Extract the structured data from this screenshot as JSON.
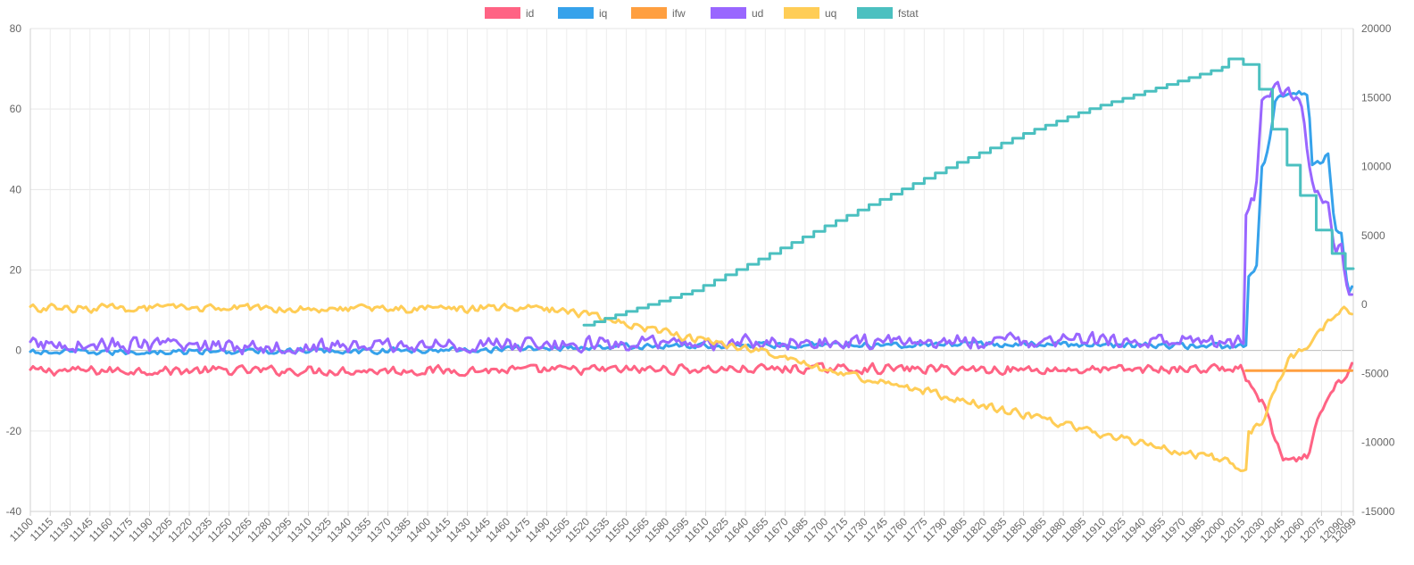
{
  "chart_data": {
    "type": "line",
    "legend_position": "top-center",
    "grid": true,
    "x": {
      "min": 11100,
      "max": 12099,
      "tick_step": 15,
      "last_tick": 12099,
      "rotated_labels": true
    },
    "y_left": {
      "min": -40,
      "max": 80,
      "ticks": [
        -40,
        -20,
        0,
        20,
        40,
        60,
        80
      ]
    },
    "y_right": {
      "min": -15000,
      "max": 20000,
      "ticks": [
        -15000,
        -10000,
        -5000,
        0,
        5000,
        10000,
        15000,
        20000
      ]
    },
    "series": [
      {
        "name": "id",
        "color": "#ff6384",
        "axis": "left",
        "noise": 1.4,
        "points": [
          [
            11100,
            -5
          ],
          [
            11400,
            -5
          ],
          [
            11700,
            -4.5
          ],
          [
            11900,
            -4.8
          ],
          [
            12015,
            -4.5
          ],
          [
            12020,
            -8
          ],
          [
            12032,
            -14
          ],
          [
            12040,
            -22
          ],
          [
            12045,
            -27
          ],
          [
            12055,
            -28
          ],
          [
            12065,
            -26
          ],
          [
            12072,
            -18
          ],
          [
            12080,
            -12
          ],
          [
            12088,
            -8
          ],
          [
            12095,
            -6
          ],
          [
            12099,
            -2
          ]
        ]
      },
      {
        "name": "iq",
        "color": "#36a2eb",
        "axis": "left",
        "noise": 0.9,
        "points": [
          [
            11100,
            -0.5
          ],
          [
            11400,
            0
          ],
          [
            11550,
            1
          ],
          [
            11700,
            1.5
          ],
          [
            11900,
            1.5
          ],
          [
            12018,
            1
          ],
          [
            12020,
            18
          ],
          [
            12026,
            21
          ],
          [
            12030,
            45
          ],
          [
            12035,
            50
          ],
          [
            12040,
            62
          ],
          [
            12050,
            64
          ],
          [
            12060,
            64
          ],
          [
            12065,
            64
          ],
          [
            12068,
            46
          ],
          [
            12075,
            47
          ],
          [
            12080,
            49
          ],
          [
            12085,
            30
          ],
          [
            12090,
            30
          ],
          [
            12095,
            14
          ],
          [
            12099,
            16
          ]
        ]
      },
      {
        "name": "ifw",
        "color": "#ff9f40",
        "axis": "left",
        "noise": 0,
        "points": [
          [
            12018,
            -5
          ],
          [
            12099,
            -5
          ]
        ]
      },
      {
        "name": "ud",
        "color": "#9966ff",
        "axis": "left",
        "noise": 2.2,
        "points": [
          [
            11100,
            1.5
          ],
          [
            11300,
            1
          ],
          [
            11500,
            1.5
          ],
          [
            11700,
            2
          ],
          [
            11900,
            2.5
          ],
          [
            12017,
            2
          ],
          [
            12018,
            35
          ],
          [
            12025,
            38
          ],
          [
            12030,
            62
          ],
          [
            12040,
            66
          ],
          [
            12050,
            64
          ],
          [
            12060,
            60
          ],
          [
            12068,
            42
          ],
          [
            12075,
            37
          ],
          [
            12080,
            35
          ],
          [
            12085,
            26
          ],
          [
            12090,
            25
          ],
          [
            12095,
            16
          ],
          [
            12099,
            13
          ]
        ]
      },
      {
        "name": "uq",
        "color": "#ffcd56",
        "axis": "left",
        "noise": 1.2,
        "points": [
          [
            11100,
            10.5
          ],
          [
            11480,
            10.5
          ],
          [
            11500,
            10
          ],
          [
            11520,
            9
          ],
          [
            11560,
            6
          ],
          [
            11600,
            3
          ],
          [
            11650,
            0
          ],
          [
            11700,
            -5
          ],
          [
            11750,
            -8
          ],
          [
            11800,
            -12
          ],
          [
            11850,
            -16
          ],
          [
            11900,
            -20
          ],
          [
            11950,
            -24
          ],
          [
            12000,
            -27
          ],
          [
            12018,
            -30
          ],
          [
            12020,
            -20
          ],
          [
            12030,
            -18
          ],
          [
            12040,
            -10
          ],
          [
            12050,
            -2
          ],
          [
            12060,
            0
          ],
          [
            12070,
            3
          ],
          [
            12080,
            7
          ],
          [
            12090,
            10
          ],
          [
            12099,
            10
          ]
        ]
      },
      {
        "name": "fstat",
        "color": "#4bc0c0",
        "axis": "right",
        "noise": 0,
        "step": true,
        "points": [
          [
            11100,
            null
          ],
          [
            11518,
            null
          ],
          [
            11518,
            -1500
          ],
          [
            11550,
            -500
          ],
          [
            11600,
            1000
          ],
          [
            11650,
            3300
          ],
          [
            11700,
            5700
          ],
          [
            11750,
            8000
          ],
          [
            11800,
            10300
          ],
          [
            11850,
            12400
          ],
          [
            11900,
            14200
          ],
          [
            11950,
            15700
          ],
          [
            12000,
            17200
          ],
          [
            12005,
            17800
          ],
          [
            12015,
            17800
          ],
          [
            12016,
            17400
          ],
          [
            12027,
            17400
          ],
          [
            12028,
            15600
          ],
          [
            12037,
            15600
          ],
          [
            12038,
            12700
          ],
          [
            12048,
            12700
          ],
          [
            12049,
            10100
          ],
          [
            12058,
            10100
          ],
          [
            12059,
            7900
          ],
          [
            12070,
            7900
          ],
          [
            12071,
            5400
          ],
          [
            12082,
            5400
          ],
          [
            12083,
            3700
          ],
          [
            12092,
            3700
          ],
          [
            12093,
            2600
          ],
          [
            12099,
            2600
          ]
        ]
      }
    ]
  }
}
